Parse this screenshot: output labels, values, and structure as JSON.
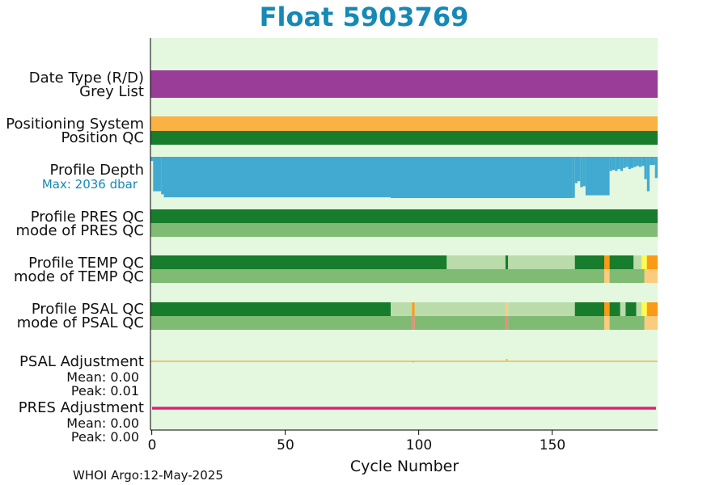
{
  "title": "Float 5903769",
  "footer": "WHOI Argo:12-May-2025",
  "colors": {
    "background": "#e4f7df",
    "good_dark": "#177c2c",
    "good_mode": "#80bb73",
    "prob_good": "#badcab",
    "probably_bad": "#fb9a15",
    "bad": "#ee8b77",
    "mode_orange": "#fbcc7e",
    "date_type": "#993d99",
    "positioning": "#fbb244",
    "depth": "#42aad0",
    "pres_adj": "#e0207a",
    "psal_adj": "#fbb244",
    "yellow": "#fffb4a",
    "title": "#1689b4"
  },
  "labels": {
    "date_type": "Date Type (R/D)",
    "grey_list": "Grey List",
    "positioning": "Positioning System",
    "position_qc": "Position QC",
    "profile_depth": "Profile Depth",
    "max_depth": "Max: 2036 dbar",
    "pres_qc": "Profile PRES QC",
    "pres_mode": "mode of PRES QC",
    "temp_qc": "Profile TEMP QC",
    "temp_mode": "mode of TEMP QC",
    "psal_qc": "Profile PSAL QC",
    "psal_mode": "mode of PSAL QC",
    "psal_adj": "PSAL Adjustment",
    "psal_mean": "Mean: 0.00",
    "psal_peak": "Peak: 0.01",
    "pres_adj": "PRES Adjustment",
    "pres_mean": "Mean: 0.00",
    "pres_peak": "Peak: 0.00"
  },
  "chart_data": {
    "type": "bar",
    "xlabel": "Cycle Number",
    "xlim": [
      -0.5,
      189.5
    ],
    "xticks": [
      "0",
      "50",
      "100",
      "150"
    ],
    "xtick_values": [
      0,
      50,
      100,
      150
    ],
    "max_depth_dbar": 2036,
    "rows": [
      {
        "name": "Grey List",
        "segments": [
          {
            "from": -0.5,
            "to": 189.5,
            "color": "date_type"
          }
        ]
      },
      {
        "name": "Positioning System",
        "segments": [
          {
            "from": -0.5,
            "to": 189.5,
            "color": "positioning"
          }
        ]
      },
      {
        "name": "Position QC",
        "segments": [
          {
            "from": -0.5,
            "to": 189.5,
            "color": "good_dark"
          }
        ]
      },
      {
        "name": "Profile PRES QC",
        "segments": [
          {
            "from": -0.5,
            "to": 189.5,
            "color": "good_dark"
          }
        ]
      },
      {
        "name": "mode of PRES QC",
        "segments": [
          {
            "from": -0.5,
            "to": 189.5,
            "color": "good_mode"
          }
        ]
      },
      {
        "name": "Profile TEMP QC",
        "segments": [
          {
            "from": -0.5,
            "to": 110.5,
            "color": "good_dark"
          },
          {
            "from": 110.5,
            "to": 132.5,
            "color": "prob_good"
          },
          {
            "from": 132.5,
            "to": 133.5,
            "color": "good_dark"
          },
          {
            "from": 133.5,
            "to": 158.5,
            "color": "prob_good"
          },
          {
            "from": 158.5,
            "to": 169.5,
            "color": "good_dark"
          },
          {
            "from": 169.5,
            "to": 171.5,
            "color": "probably_bad"
          },
          {
            "from": 171.5,
            "to": 180.5,
            "color": "good_dark"
          },
          {
            "from": 180.5,
            "to": 183.5,
            "color": "prob_good"
          },
          {
            "from": 183.5,
            "to": 185.5,
            "color": "yellow"
          },
          {
            "from": 185.5,
            "to": 189.5,
            "color": "probably_bad"
          }
        ]
      },
      {
        "name": "mode of TEMP QC",
        "segments": [
          {
            "from": -0.5,
            "to": 169.5,
            "color": "good_mode"
          },
          {
            "from": 169.5,
            "to": 171.5,
            "color": "mode_orange"
          },
          {
            "from": 171.5,
            "to": 184.5,
            "color": "good_mode"
          },
          {
            "from": 184.5,
            "to": 189.5,
            "color": "mode_orange"
          }
        ]
      },
      {
        "name": "Profile PSAL QC",
        "segments": [
          {
            "from": -0.5,
            "to": 89.5,
            "color": "good_dark"
          },
          {
            "from": 89.5,
            "to": 97.5,
            "color": "prob_good"
          },
          {
            "from": 97.5,
            "to": 98.5,
            "color": "probably_bad"
          },
          {
            "from": 98.5,
            "to": 132.5,
            "color": "prob_good"
          },
          {
            "from": 132.5,
            "to": 133.5,
            "color": "mode_orange"
          },
          {
            "from": 133.5,
            "to": 158.5,
            "color": "prob_good"
          },
          {
            "from": 158.5,
            "to": 169.5,
            "color": "good_dark"
          },
          {
            "from": 169.5,
            "to": 171.5,
            "color": "probably_bad"
          },
          {
            "from": 171.5,
            "to": 175.5,
            "color": "good_dark"
          },
          {
            "from": 175.5,
            "to": 177.5,
            "color": "prob_good"
          },
          {
            "from": 177.5,
            "to": 181.5,
            "color": "good_dark"
          },
          {
            "from": 181.5,
            "to": 183.5,
            "color": "prob_good"
          },
          {
            "from": 183.5,
            "to": 185.5,
            "color": "yellow"
          },
          {
            "from": 185.5,
            "to": 189.5,
            "color": "probably_bad"
          }
        ]
      },
      {
        "name": "mode of PSAL QC",
        "segments": [
          {
            "from": -0.5,
            "to": 97.5,
            "color": "good_mode"
          },
          {
            "from": 97.5,
            "to": 98.5,
            "color": "bad"
          },
          {
            "from": 98.5,
            "to": 132.5,
            "color": "good_mode"
          },
          {
            "from": 132.5,
            "to": 133.5,
            "color": "bad"
          },
          {
            "from": 133.5,
            "to": 169.5,
            "color": "good_mode"
          },
          {
            "from": 169.5,
            "to": 171.5,
            "color": "mode_orange"
          },
          {
            "from": 171.5,
            "to": 184.5,
            "color": "good_mode"
          },
          {
            "from": 184.5,
            "to": 189.5,
            "color": "mode_orange"
          }
        ]
      }
    ],
    "profile_depth_dbar": [
      {
        "from": -0.5,
        "to": 0.5,
        "depth": 200
      },
      {
        "from": 0.5,
        "to": 3.5,
        "depth": 1700
      },
      {
        "from": 3.5,
        "to": 4.5,
        "depth": 1850
      },
      {
        "from": 4.5,
        "to": 89.5,
        "depth": 2000
      },
      {
        "from": 89.5,
        "to": 157.5,
        "depth": 2036
      },
      {
        "from": 157.5,
        "to": 158.5,
        "depth": 2030
      },
      {
        "from": 158.5,
        "to": 159.5,
        "depth": 1300
      },
      {
        "from": 159.5,
        "to": 160.5,
        "depth": 1200
      },
      {
        "from": 160.5,
        "to": 161.5,
        "depth": 1500
      },
      {
        "from": 161.5,
        "to": 162.5,
        "depth": 1450
      },
      {
        "from": 162.5,
        "to": 171.5,
        "depth": 1900
      },
      {
        "from": 171.5,
        "to": 172.5,
        "depth": 700
      },
      {
        "from": 172.5,
        "to": 173.5,
        "depth": 650
      },
      {
        "from": 173.5,
        "to": 174.5,
        "depth": 700
      },
      {
        "from": 174.5,
        "to": 175.5,
        "depth": 600
      },
      {
        "from": 175.5,
        "to": 176.5,
        "depth": 700
      },
      {
        "from": 176.5,
        "to": 177.5,
        "depth": 550
      },
      {
        "from": 177.5,
        "to": 178.5,
        "depth": 500
      },
      {
        "from": 178.5,
        "to": 179.5,
        "depth": 600
      },
      {
        "from": 179.5,
        "to": 180.5,
        "depth": 550
      },
      {
        "from": 180.5,
        "to": 181.5,
        "depth": 500
      },
      {
        "from": 181.5,
        "to": 182.5,
        "depth": 450
      },
      {
        "from": 182.5,
        "to": 183.5,
        "depth": 500
      },
      {
        "from": 183.5,
        "to": 184.5,
        "depth": 450
      },
      {
        "from": 184.5,
        "to": 185.5,
        "depth": 1100
      },
      {
        "from": 185.5,
        "to": 186.5,
        "depth": 1700
      },
      {
        "from": 186.5,
        "to": 188.5,
        "depth": 400
      },
      {
        "from": 188.5,
        "to": 189.5,
        "depth": 1050
      }
    ],
    "psal_adjustment": {
      "mean": 0.0,
      "peak": 0.01,
      "spikes": [
        {
          "cycle": 98,
          "value": -0.005
        },
        {
          "cycle": 133,
          "value": 0.01
        }
      ]
    },
    "pres_adjustment": {
      "mean": 0.0,
      "peak": 0.0
    }
  }
}
